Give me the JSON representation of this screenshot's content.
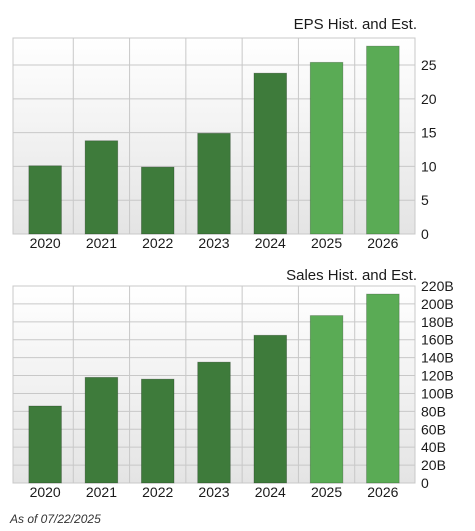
{
  "colors": {
    "historical": "#3e7b3b",
    "estimate": "#5aab55",
    "plot_bg_top": "#ffffff",
    "plot_bg_bottom": "#e6e6e6",
    "grid": "#c8c8c8"
  },
  "chart_data": [
    {
      "type": "bar",
      "title": "EPS Hist. and Est.",
      "categories": [
        "2020",
        "2021",
        "2022",
        "2023",
        "2024",
        "2025",
        "2026"
      ],
      "values": [
        10.1,
        13.8,
        9.9,
        14.9,
        23.8,
        25.4,
        27.8
      ],
      "estimate_flags": [
        false,
        false,
        false,
        false,
        false,
        true,
        true
      ],
      "ylim": [
        0,
        29
      ],
      "yticks": [
        0,
        5,
        10,
        15,
        20,
        25
      ],
      "ytick_labels": [
        "0",
        "5",
        "10",
        "15",
        "20",
        "25"
      ],
      "grid": true
    },
    {
      "type": "bar",
      "title": "Sales Hist. and Est.",
      "categories": [
        "2020",
        "2021",
        "2022",
        "2023",
        "2024",
        "2025",
        "2026"
      ],
      "values": [
        86,
        118,
        116,
        135,
        165,
        187,
        211
      ],
      "estimate_flags": [
        false,
        false,
        false,
        false,
        false,
        true,
        true
      ],
      "ylim": [
        0,
        220
      ],
      "yticks": [
        0,
        20,
        40,
        60,
        80,
        100,
        120,
        140,
        160,
        180,
        200,
        220
      ],
      "ytick_labels": [
        "0",
        "20B",
        "40B",
        "60B",
        "80B",
        "100B",
        "120B",
        "140B",
        "160B",
        "180B",
        "200B",
        "220B"
      ],
      "grid": true
    }
  ],
  "footer": "As of 07/22/2025"
}
